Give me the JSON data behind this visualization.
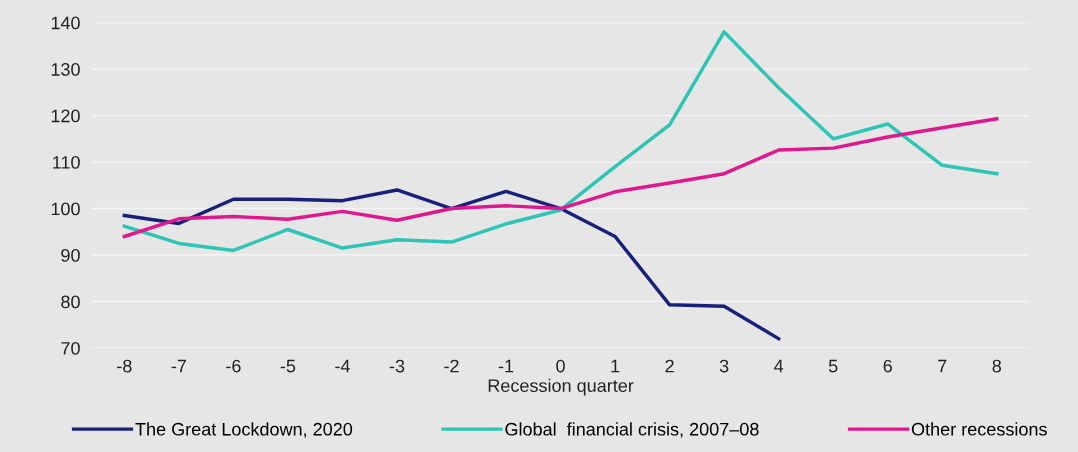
{
  "chart_data": {
    "type": "line",
    "xlabel": "Recession quarter",
    "x": [
      -8,
      -7,
      -6,
      -5,
      -4,
      -3,
      -2,
      -1,
      0,
      1,
      2,
      3,
      4,
      5,
      6,
      7,
      8
    ],
    "series": [
      {
        "name": "The Great Lockdown, 2020",
        "color": "#17207a",
        "values": [
          98.5,
          96.8,
          102,
          102,
          101.7,
          104,
          100,
          103.7,
          100,
          94,
          79.3,
          79,
          72,
          null,
          null,
          null,
          null
        ]
      },
      {
        "name": "Global  financial crisis, 2007–08",
        "color": "#2ec4b6",
        "values": [
          96.2,
          92.5,
          91,
          95.5,
          91.5,
          93.3,
          92.8,
          96.7,
          99.7,
          109,
          118,
          138,
          126,
          115,
          118.2,
          109.3,
          107.5
        ]
      },
      {
        "name": "Other recessions",
        "color": "#e0188f",
        "values": [
          94,
          97.8,
          98.3,
          97.7,
          99.4,
          97.5,
          100,
          100.6,
          100,
          103.6,
          105.5,
          107.5,
          112.6,
          113,
          115.4,
          117.4,
          119.3
        ]
      }
    ],
    "xlim": [
      -8.6,
      8.6
    ],
    "xticks": [
      -8,
      -7,
      -6,
      -5,
      -4,
      -3,
      -2,
      -1,
      0,
      1,
      2,
      3,
      4,
      5,
      6,
      7,
      8
    ],
    "ylim": [
      70,
      140
    ],
    "yticks": [
      70,
      80,
      90,
      100,
      110,
      120,
      130,
      140
    ],
    "grid": "y",
    "legend": "bottom",
    "marker": "none",
    "line_style": "solid"
  }
}
